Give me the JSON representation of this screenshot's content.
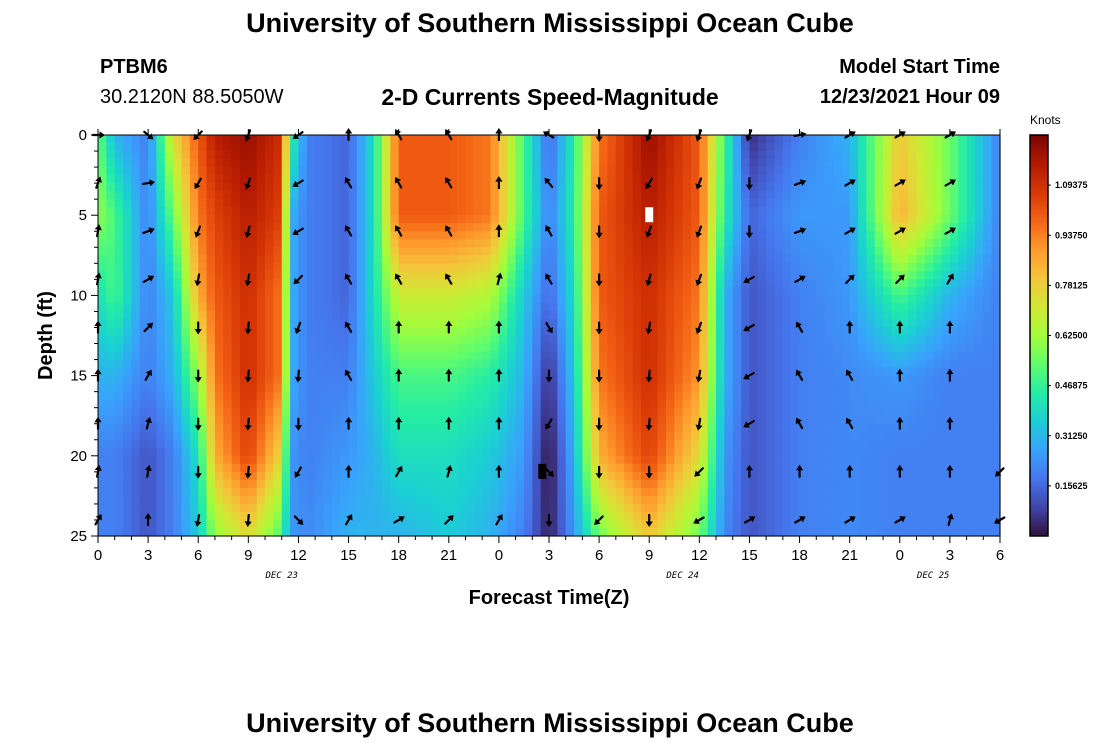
{
  "header": {
    "title": "University of Southern Mississippi Ocean Cube",
    "station": "PTBM6",
    "coords": "30.2120N  88.5050W",
    "subtitle": "2-D Currents Speed-Magnitude",
    "start_label": "Model Start Time",
    "start_value": "12/23/2021 Hour 09"
  },
  "footer": {
    "title": "University of Southern Mississippi Ocean Cube"
  },
  "colors": {
    "scale": [
      "#30123b",
      "#4145ab",
      "#4675ed",
      "#39a2fc",
      "#1bcfd4",
      "#24eca6",
      "#61fc6c",
      "#a4fc3b",
      "#d1e834",
      "#f3c63a",
      "#fe9b2d",
      "#f36315",
      "#d93806",
      "#b11901",
      "#7a0403"
    ],
    "arrow": "#000000"
  },
  "chart_data": {
    "type": "heatmap",
    "title": "2-D Currents Speed-Magnitude",
    "xlabel": "Forecast Time(Z)",
    "ylabel": "Depth (ft)",
    "colorbar_label": "Knots",
    "x_range_hours": [
      0,
      54
    ],
    "y_range": [
      0,
      25
    ],
    "x_ticks": [
      {
        "h": 0,
        "label": "0"
      },
      {
        "h": 3,
        "label": "3"
      },
      {
        "h": 6,
        "label": "6"
      },
      {
        "h": 9,
        "label": "9"
      },
      {
        "h": 12,
        "label": "12"
      },
      {
        "h": 15,
        "label": "15"
      },
      {
        "h": 18,
        "label": "18"
      },
      {
        "h": 21,
        "label": "21"
      },
      {
        "h": 24,
        "label": "0"
      },
      {
        "h": 27,
        "label": "3"
      },
      {
        "h": 30,
        "label": "6"
      },
      {
        "h": 33,
        "label": "9"
      },
      {
        "h": 36,
        "label": "12"
      },
      {
        "h": 39,
        "label": "15"
      },
      {
        "h": 42,
        "label": "18"
      },
      {
        "h": 45,
        "label": "21"
      },
      {
        "h": 48,
        "label": "0"
      },
      {
        "h": 51,
        "label": "3"
      },
      {
        "h": 54,
        "label": "6"
      }
    ],
    "y_ticks": [
      {
        "v": 0,
        "label": "0"
      },
      {
        "v": 5,
        "label": "5"
      },
      {
        "v": 10,
        "label": "10"
      },
      {
        "v": 15,
        "label": "15"
      },
      {
        "v": 20,
        "label": "20"
      },
      {
        "v": 25,
        "label": "25"
      }
    ],
    "date_labels": [
      {
        "h": 11,
        "label": "DEC 23"
      },
      {
        "h": 35,
        "label": "DEC 24"
      },
      {
        "h": 50,
        "label": "DEC 25"
      }
    ],
    "colorbar": {
      "range": [
        0,
        1.25
      ],
      "ticks": [
        {
          "v": 0.15625,
          "label": "0.15625"
        },
        {
          "v": 0.3125,
          "label": "0.31250"
        },
        {
          "v": 0.46875,
          "label": "0.46875"
        },
        {
          "v": 0.625,
          "label": "0.62500"
        },
        {
          "v": 0.78125,
          "label": "0.78125"
        },
        {
          "v": 0.9375,
          "label": "0.93750"
        },
        {
          "v": 1.09375,
          "label": "1.09375"
        }
      ]
    },
    "field_hours": [
      0,
      1,
      3,
      4.5,
      6,
      7,
      9,
      11,
      11.5,
      12.5,
      15,
      16.5,
      18,
      21,
      23.5,
      25.5,
      27,
      28.5,
      30,
      33,
      36,
      37.5,
      39,
      42,
      45,
      48,
      51,
      54
    ],
    "field_depths": [
      0,
      5,
      10,
      15,
      20,
      25
    ],
    "speed_knots": [
      [
        0.55,
        0.3,
        0.2,
        0.75,
        1.0,
        1.15,
        1.2,
        1.1,
        0.5,
        0.2,
        0.15,
        0.4,
        1.0,
        1.0,
        0.95,
        0.5,
        0.15,
        0.45,
        0.95,
        1.2,
        1.0,
        0.5,
        0.05,
        0.2,
        0.3,
        0.8,
        0.55,
        0.2
      ],
      [
        0.6,
        0.5,
        0.2,
        0.55,
        0.95,
        1.05,
        1.15,
        1.05,
        0.3,
        0.2,
        0.15,
        0.4,
        1.0,
        1.0,
        0.95,
        0.5,
        0.2,
        0.45,
        1.0,
        1.15,
        1.0,
        0.45,
        0.15,
        0.25,
        0.25,
        0.85,
        0.55,
        0.2
      ],
      [
        0.4,
        0.5,
        0.2,
        0.35,
        0.85,
        1.0,
        1.1,
        0.95,
        0.3,
        0.2,
        0.15,
        0.4,
        0.7,
        0.7,
        0.65,
        0.35,
        0.15,
        0.4,
        1.0,
        1.1,
        0.95,
        0.3,
        0.12,
        0.2,
        0.25,
        0.5,
        0.3,
        0.2
      ],
      [
        0.3,
        0.3,
        0.2,
        0.3,
        0.6,
        0.95,
        1.1,
        0.95,
        0.3,
        0.2,
        0.2,
        0.35,
        0.5,
        0.5,
        0.45,
        0.3,
        0.05,
        0.35,
        0.95,
        1.1,
        0.9,
        0.3,
        0.12,
        0.2,
        0.22,
        0.25,
        0.2,
        0.2
      ],
      [
        0.2,
        0.2,
        0.12,
        0.2,
        0.4,
        0.85,
        1.05,
        0.75,
        0.25,
        0.2,
        0.25,
        0.3,
        0.4,
        0.4,
        0.35,
        0.25,
        0.0,
        0.3,
        0.85,
        1.05,
        0.75,
        0.25,
        0.12,
        0.2,
        0.22,
        0.2,
        0.2,
        0.2
      ],
      [
        0.2,
        0.2,
        0.12,
        0.2,
        0.35,
        0.6,
        0.75,
        0.5,
        0.25,
        0.22,
        0.3,
        0.3,
        0.3,
        0.35,
        0.3,
        0.2,
        0.02,
        0.25,
        0.55,
        0.8,
        0.55,
        0.22,
        0.12,
        0.2,
        0.22,
        0.2,
        0.2,
        0.2
      ]
    ],
    "markers": [
      {
        "h": 33,
        "depth": 5,
        "color": "#ffffff"
      },
      {
        "h": 26.6,
        "depth": 21,
        "color": "#000000"
      }
    ],
    "arrow_rows_depth": [
      0,
      3,
      6,
      9,
      12,
      15,
      18,
      21,
      24
    ],
    "arrows": [
      {
        "h": 0,
        "dirs": [
          90,
          20,
          10,
          10,
          0,
          0,
          0,
          10,
          30
        ]
      },
      {
        "h": 3,
        "dirs": [
          130,
          80,
          70,
          60,
          45,
          30,
          15,
          10,
          0
        ]
      },
      {
        "h": 6,
        "dirs": [
          225,
          210,
          200,
          190,
          180,
          180,
          180,
          180,
          190
        ]
      },
      {
        "h": 9,
        "dirs": [
          200,
          200,
          195,
          190,
          185,
          185,
          185,
          185,
          185
        ]
      },
      {
        "h": 12,
        "dirs": [
          235,
          240,
          240,
          225,
          200,
          185,
          180,
          210,
          135
        ]
      },
      {
        "h": 15,
        "dirs": [
          0,
          330,
          330,
          330,
          330,
          330,
          0,
          0,
          30
        ]
      },
      {
        "h": 18,
        "dirs": [
          330,
          330,
          330,
          330,
          0,
          0,
          0,
          30,
          60
        ]
      },
      {
        "h": 21,
        "dirs": [
          330,
          330,
          330,
          330,
          0,
          0,
          0,
          15,
          45
        ]
      },
      {
        "h": 24,
        "dirs": [
          0,
          0,
          0,
          15,
          0,
          0,
          0,
          0,
          30
        ]
      },
      {
        "h": 27,
        "dirs": [
          300,
          320,
          330,
          330,
          150,
          180,
          210,
          135,
          180
        ]
      },
      {
        "h": 30,
        "dirs": [
          180,
          180,
          180,
          180,
          180,
          180,
          180,
          180,
          225
        ]
      },
      {
        "h": 33,
        "dirs": [
          200,
          210,
          200,
          195,
          190,
          185,
          185,
          180,
          180
        ]
      },
      {
        "h": 36,
        "dirs": [
          200,
          200,
          200,
          200,
          200,
          190,
          190,
          225,
          240
        ]
      },
      {
        "h": 39,
        "dirs": [
          200,
          180,
          180,
          240,
          240,
          240,
          240,
          0,
          60
        ]
      },
      {
        "h": 42,
        "dirs": [
          80,
          70,
          70,
          60,
          330,
          330,
          330,
          0,
          60
        ]
      },
      {
        "h": 45,
        "dirs": [
          60,
          60,
          60,
          45,
          0,
          330,
          330,
          0,
          60
        ]
      },
      {
        "h": 48,
        "dirs": [
          60,
          60,
          60,
          45,
          0,
          0,
          0,
          0,
          60
        ]
      },
      {
        "h": 51,
        "dirs": [
          60,
          60,
          60,
          30,
          0,
          0,
          0,
          0,
          15
        ]
      },
      {
        "h": 54,
        "dirs": [
          null,
          null,
          null,
          null,
          null,
          null,
          null,
          225,
          240
        ]
      }
    ]
  }
}
